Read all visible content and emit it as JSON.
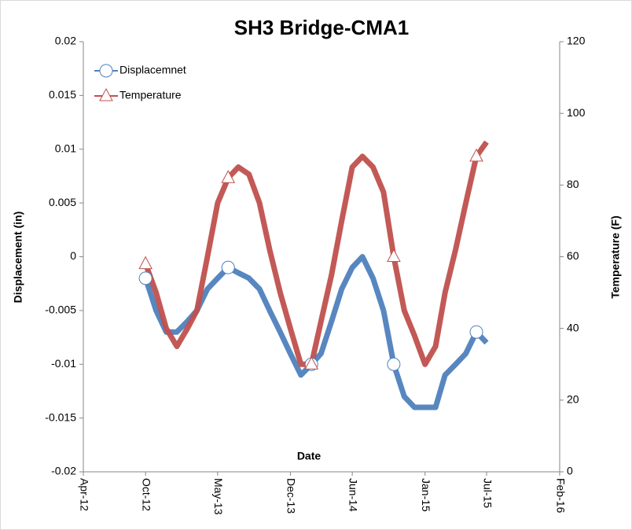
{
  "chart_data": {
    "type": "line",
    "title": "SH3 Bridge-CMA1",
    "xlabel": "Date",
    "ylabel": "Displacement (in)",
    "y2label": "Temperature (F)",
    "x": [
      "2012-10",
      "2012-11",
      "2012-12",
      "2013-01",
      "2013-02",
      "2013-03",
      "2013-04",
      "2013-05",
      "2013-06",
      "2013-07",
      "2013-08",
      "2013-09",
      "2013-10",
      "2013-11",
      "2013-12",
      "2014-01",
      "2014-02",
      "2014-03",
      "2014-04",
      "2014-05",
      "2014-06",
      "2014-07",
      "2014-08",
      "2014-09",
      "2014-10",
      "2014-11",
      "2014-12",
      "2015-01",
      "2015-02",
      "2015-03",
      "2015-04",
      "2015-05",
      "2015-06",
      "2015-07"
    ],
    "series": [
      {
        "name": "Displacemnet",
        "color": "#4f81bd",
        "marker": "circle",
        "values": [
          -0.002,
          -0.005,
          -0.007,
          -0.007,
          -0.006,
          -0.005,
          -0.003,
          -0.002,
          -0.001,
          -0.0015,
          -0.002,
          -0.003,
          -0.005,
          -0.007,
          -0.009,
          -0.011,
          -0.01,
          -0.009,
          -0.006,
          -0.003,
          -0.001,
          0.0,
          -0.002,
          -0.005,
          -0.01,
          -0.013,
          -0.014,
          -0.014,
          -0.014,
          -0.011,
          -0.01,
          -0.009,
          -0.007,
          -0.008
        ]
      },
      {
        "name": "Temperature",
        "color": "#c0504d",
        "marker": "triangle",
        "axis": "y2",
        "values": [
          58,
          50,
          40,
          35,
          40,
          45,
          60,
          75,
          82,
          85,
          83,
          75,
          62,
          50,
          40,
          30,
          30,
          42,
          55,
          70,
          85,
          88,
          85,
          78,
          60,
          45,
          38,
          30,
          35,
          50,
          62,
          75,
          88,
          92
        ]
      }
    ],
    "xlim": [
      "2012-04",
      "2016-02"
    ],
    "xticks": [
      {
        "value": "2012-04",
        "label": "Apr-12"
      },
      {
        "value": "2012-10",
        "label": "Oct-12"
      },
      {
        "value": "2013-05",
        "label": "May-13"
      },
      {
        "value": "2013-12",
        "label": "Dec-13"
      },
      {
        "value": "2014-06",
        "label": "Jun-14"
      },
      {
        "value": "2015-01",
        "label": "Jan-15"
      },
      {
        "value": "2015-07",
        "label": "Jul-15"
      },
      {
        "value": "2016-02",
        "label": "Feb-16"
      }
    ],
    "ylim": [
      -0.02,
      0.02
    ],
    "yticks": [
      -0.02,
      -0.015,
      -0.01,
      -0.005,
      0,
      0.005,
      0.01,
      0.015,
      0.02
    ],
    "y2lim": [
      0,
      120
    ],
    "y2ticks": [
      0,
      20,
      40,
      60,
      80,
      100,
      120
    ],
    "legend": "upper-left",
    "grid": false
  }
}
